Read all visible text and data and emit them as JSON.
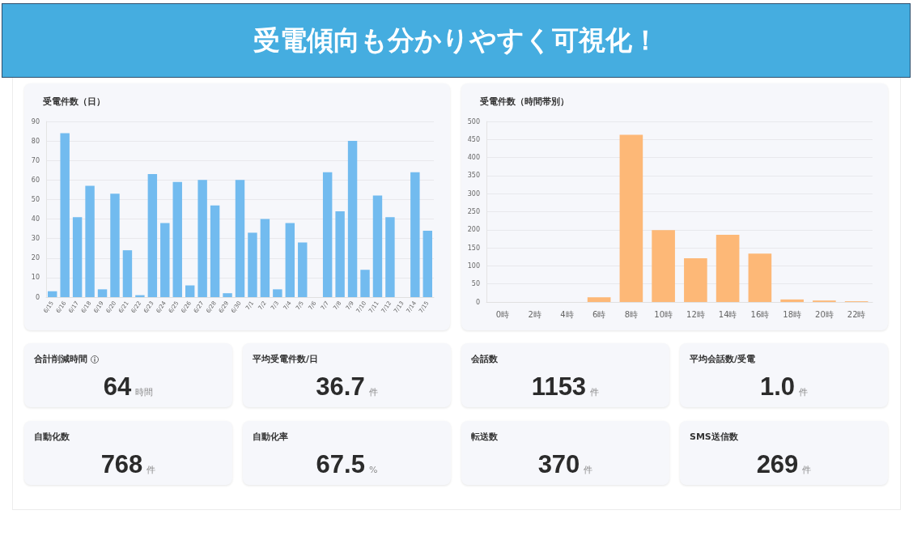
{
  "chart_data": [
    {
      "type": "other",
      "title": "受電傾向も分かりやすく可視化！"
    },
    {
      "type": "bar",
      "title": "受電件数（日）",
      "categories": [
        "6/15",
        "6/16",
        "6/17",
        "6/18",
        "6/19",
        "6/20",
        "6/21",
        "6/22",
        "6/23",
        "6/24",
        "6/25",
        "6/26",
        "6/27",
        "6/28",
        "6/29",
        "6/30",
        "7/1",
        "7/2",
        "7/3",
        "7/4",
        "7/5",
        "7/6",
        "7/7",
        "7/8",
        "7/9",
        "7/10",
        "7/11",
        "7/12",
        "7/13",
        "7/14",
        "7/15"
      ],
      "values": [
        3,
        84,
        41,
        57,
        4,
        53,
        24,
        1,
        63,
        38,
        59,
        6,
        60,
        47,
        2,
        60,
        33,
        40,
        4,
        38,
        28,
        0,
        64,
        44,
        80,
        14,
        52,
        41,
        0,
        64,
        34
      ],
      "color": "#72bbef",
      "ylim": [
        0,
        90
      ],
      "yticks": [
        0,
        10,
        20,
        30,
        40,
        50,
        60,
        70,
        80,
        90
      ],
      "grid": "y"
    },
    {
      "type": "bar",
      "title": "受電件数（時間帯別）",
      "categories": [
        "0時",
        "2時",
        "4時",
        "6時",
        "8時",
        "10時",
        "12時",
        "14時",
        "16時",
        "18時",
        "20時",
        "22時"
      ],
      "values": [
        0,
        0,
        0,
        13,
        463,
        199,
        121,
        186,
        134,
        7,
        4,
        2
      ],
      "color": "#fdb877",
      "ylim": [
        0,
        500
      ],
      "yticks": [
        0,
        50,
        100,
        150,
        200,
        250,
        300,
        350,
        400,
        450,
        500
      ],
      "grid": "y"
    },
    {
      "type": "other",
      "title": "合計削減時間",
      "annotations": [
        "64",
        "時間"
      ]
    },
    {
      "type": "other",
      "title": "平均受電件数/日",
      "annotations": [
        "36.7",
        "件"
      ]
    },
    {
      "type": "other",
      "title": "会話数",
      "annotations": [
        "1153",
        "件"
      ]
    },
    {
      "type": "other",
      "title": "平均会話数/受電",
      "annotations": [
        "1.0",
        "件"
      ]
    },
    {
      "type": "other",
      "title": "自動化数",
      "annotations": [
        "768",
        "件"
      ]
    },
    {
      "type": "other",
      "title": "自動化率",
      "annotations": [
        "67.5",
        "%"
      ]
    },
    {
      "type": "other",
      "title": "転送数",
      "annotations": [
        "370",
        "件"
      ]
    },
    {
      "type": "other",
      "title": "SMS送信数",
      "annotations": [
        "269",
        "件"
      ]
    }
  ]
}
